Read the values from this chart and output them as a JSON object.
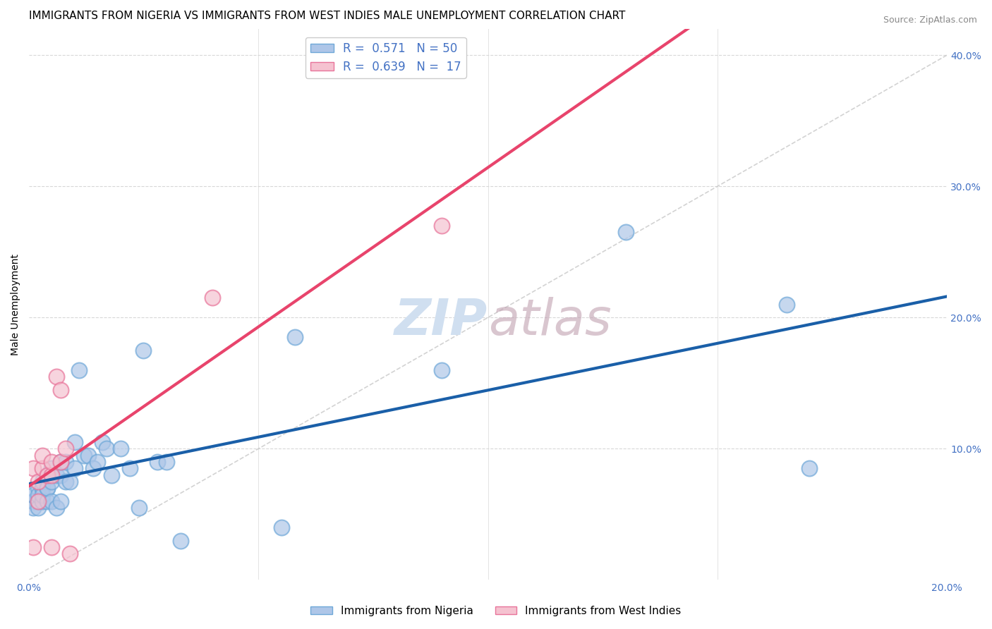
{
  "title": "IMMIGRANTS FROM NIGERIA VS IMMIGRANTS FROM WEST INDIES MALE UNEMPLOYMENT CORRELATION CHART",
  "source": "Source: ZipAtlas.com",
  "xlabel": "",
  "ylabel": "Male Unemployment",
  "xlim": [
    0.0,
    0.2
  ],
  "ylim": [
    0.0,
    0.42
  ],
  "xticks": [
    0.0,
    0.05,
    0.1,
    0.15,
    0.2
  ],
  "yticks": [
    0.0,
    0.1,
    0.2,
    0.3,
    0.4
  ],
  "nigeria_x": [
    0.001,
    0.001,
    0.001,
    0.002,
    0.002,
    0.002,
    0.002,
    0.003,
    0.003,
    0.003,
    0.003,
    0.003,
    0.004,
    0.004,
    0.004,
    0.004,
    0.005,
    0.005,
    0.005,
    0.006,
    0.006,
    0.007,
    0.007,
    0.007,
    0.008,
    0.008,
    0.009,
    0.01,
    0.01,
    0.011,
    0.012,
    0.013,
    0.014,
    0.015,
    0.016,
    0.017,
    0.018,
    0.02,
    0.022,
    0.024,
    0.025,
    0.028,
    0.03,
    0.033,
    0.055,
    0.058,
    0.09,
    0.13,
    0.165,
    0.17
  ],
  "nigeria_y": [
    0.06,
    0.055,
    0.065,
    0.06,
    0.055,
    0.07,
    0.065,
    0.06,
    0.07,
    0.07,
    0.065,
    0.075,
    0.06,
    0.07,
    0.07,
    0.08,
    0.06,
    0.075,
    0.085,
    0.055,
    0.08,
    0.06,
    0.08,
    0.09,
    0.075,
    0.09,
    0.075,
    0.085,
    0.105,
    0.16,
    0.095,
    0.095,
    0.085,
    0.09,
    0.105,
    0.1,
    0.08,
    0.1,
    0.085,
    0.055,
    0.175,
    0.09,
    0.09,
    0.03,
    0.04,
    0.185,
    0.16,
    0.265,
    0.21,
    0.085
  ],
  "westindies_x": [
    0.001,
    0.001,
    0.002,
    0.002,
    0.003,
    0.003,
    0.004,
    0.005,
    0.005,
    0.005,
    0.006,
    0.007,
    0.007,
    0.008,
    0.009,
    0.04,
    0.09
  ],
  "westindies_y": [
    0.025,
    0.085,
    0.06,
    0.075,
    0.085,
    0.095,
    0.08,
    0.08,
    0.09,
    0.025,
    0.155,
    0.145,
    0.09,
    0.1,
    0.02,
    0.215,
    0.27
  ],
  "nigeria_color": "#aec6e8",
  "nigeria_edge_color": "#6fa8d8",
  "nigeria_line_color": "#1a5fa8",
  "westindies_color": "#f5c2d0",
  "westindies_edge_color": "#e8749a",
  "westindies_line_color": "#e8446c",
  "nigeria_R": 0.571,
  "nigeria_N": 50,
  "westindies_R": 0.639,
  "westindies_N": 17,
  "diag_line_color": "#c8c8c8",
  "grid_color": "#d8d8d8",
  "watermark_color": "#d0dff0",
  "legend_labels": [
    "Immigrants from Nigeria",
    "Immigrants from West Indies"
  ],
  "title_fontsize": 11,
  "axis_label_fontsize": 10,
  "tick_label_color": "#4472c4",
  "background_color": "#ffffff"
}
